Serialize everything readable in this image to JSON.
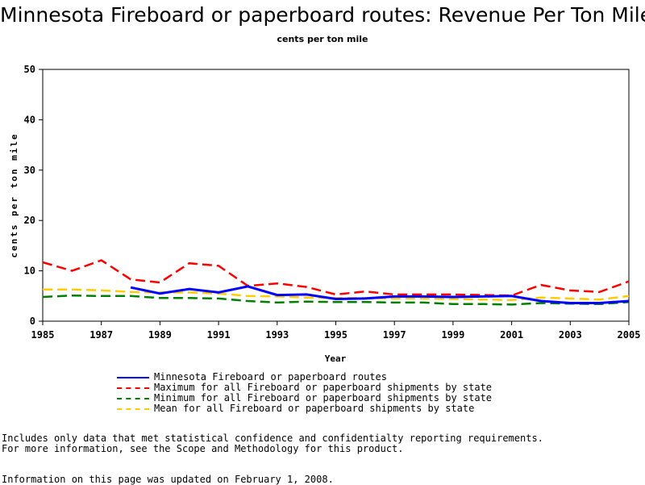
{
  "title": "Minnesota Fireboard or paperboard routes: Revenue Per Ton Mile",
  "subtitle": "cents per ton mile",
  "chart_data": {
    "type": "line",
    "xlabel": "Year",
    "ylabel": "cents per ton mile",
    "xlim": [
      1985,
      2005
    ],
    "ylim": [
      0,
      50
    ],
    "x_ticks": [
      1985,
      1987,
      1989,
      1991,
      1993,
      1995,
      1997,
      1999,
      2001,
      2003,
      2005
    ],
    "y_ticks": [
      0,
      10,
      20,
      30,
      40,
      50
    ],
    "grid": false,
    "legend_position": "bottom",
    "series": [
      {
        "name": "Minnesota Fireboard or paperboard routes",
        "color": "#0000ff",
        "style": "solid",
        "x": [
          1988,
          1989,
          1990,
          1991,
          1992,
          1993,
          1994,
          1995,
          1996,
          1997,
          1998,
          1999,
          2000,
          2001,
          2002,
          2003,
          2004,
          2005
        ],
        "y": [
          6.7,
          5.5,
          6.4,
          5.7,
          6.9,
          5.2,
          5.3,
          4.4,
          4.5,
          4.9,
          4.9,
          4.8,
          4.9,
          5.0,
          4.0,
          3.6,
          3.6,
          4.0
        ]
      },
      {
        "name": "Maximum for all Fireboard or paperboard shipments by state",
        "color": "#ff0000",
        "style": "dashed",
        "x": [
          1985,
          1986,
          1987,
          1988,
          1989,
          1990,
          1991,
          1992,
          1993,
          1994,
          1995,
          1996,
          1997,
          1998,
          1999,
          2000,
          2001,
          2002,
          2003,
          2004,
          2005
        ],
        "y": [
          11.7,
          10.0,
          12.1,
          8.3,
          7.7,
          11.5,
          11.0,
          7.0,
          7.5,
          6.8,
          5.3,
          5.9,
          5.3,
          5.3,
          5.3,
          5.2,
          5.1,
          7.2,
          6.1,
          5.8,
          7.9
        ]
      },
      {
        "name": "Minimum for all Fireboard or paperboard shipments by state",
        "color": "#008000",
        "style": "dashed",
        "x": [
          1985,
          1986,
          1987,
          1988,
          1989,
          1990,
          1991,
          1992,
          1993,
          1994,
          1995,
          1996,
          1997,
          1998,
          1999,
          2000,
          2001,
          2002,
          2003,
          2004,
          2005
        ],
        "y": [
          4.8,
          5.1,
          5.0,
          5.0,
          4.6,
          4.6,
          4.5,
          4.0,
          3.7,
          3.9,
          3.8,
          3.8,
          3.7,
          3.7,
          3.4,
          3.4,
          3.3,
          3.6,
          3.5,
          3.4,
          3.8
        ]
      },
      {
        "name": "Mean for all Fireboard or paperboard shipments by state",
        "color": "#ffcc00",
        "style": "dashed",
        "x": [
          1985,
          1986,
          1987,
          1988,
          1989,
          1990,
          1991,
          1992,
          1993,
          1994,
          1995,
          1996,
          1997,
          1998,
          1999,
          2000,
          2001,
          2002,
          2003,
          2004,
          2005
        ],
        "y": [
          6.3,
          6.3,
          6.1,
          5.8,
          5.7,
          5.7,
          5.5,
          5.0,
          4.9,
          4.7,
          4.6,
          4.6,
          4.5,
          4.5,
          4.4,
          4.3,
          4.2,
          4.7,
          4.5,
          4.3,
          5.0
        ]
      }
    ]
  },
  "notes": {
    "line1": "Includes only data that met statistical confidence and confidentialty reporting requirements.",
    "line2": "For more information, see the Scope and Methodology for this product.",
    "updated": "Information on this page was updated on February 1, 2008."
  }
}
